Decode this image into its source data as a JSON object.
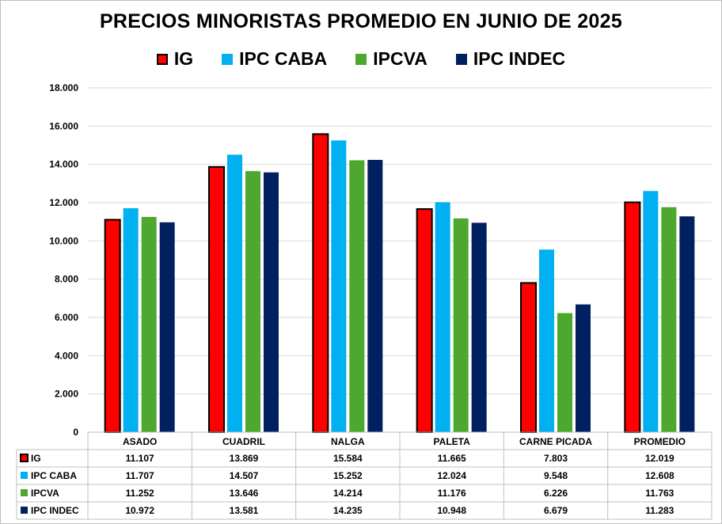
{
  "chart_data": {
    "type": "bar",
    "title": "PRECIOS MINORISTAS PROMEDIO EN JUNIO DE 2025",
    "categories": [
      "ASADO",
      "CUADRIL",
      "NALGA",
      "PALETA",
      "CARNE PICADA",
      "PROMEDIO"
    ],
    "series": [
      {
        "name": "IG",
        "color": "#ff0000",
        "outline": "#000000",
        "values": [
          11107,
          13869,
          15584,
          11665,
          7803,
          12019
        ],
        "labels": [
          "11.107",
          "13.869",
          "15.584",
          "11.665",
          "7.803",
          "12.019"
        ]
      },
      {
        "name": "IPC CABA",
        "color": "#00b0f0",
        "values": [
          11707,
          14507,
          15252,
          12024,
          9548,
          12608
        ],
        "labels": [
          "11.707",
          "14.507",
          "15.252",
          "12.024",
          "9.548",
          "12.608"
        ]
      },
      {
        "name": "IPCVA",
        "color": "#4ea72e",
        "values": [
          11252,
          13646,
          14214,
          11176,
          6226,
          11763
        ],
        "labels": [
          "11.252",
          "13.646",
          "14.214",
          "11.176",
          "6.226",
          "11.763"
        ]
      },
      {
        "name": "IPC INDEC",
        "color": "#002060",
        "values": [
          10972,
          13581,
          14235,
          10948,
          6679,
          11283
        ],
        "labels": [
          "10.972",
          "13.581",
          "14.235",
          "10.948",
          "6.679",
          "11.283"
        ]
      }
    ],
    "ylim": [
      0,
      18000
    ],
    "yticks": [
      0,
      2000,
      4000,
      6000,
      8000,
      10000,
      12000,
      14000,
      16000,
      18000
    ],
    "ytick_labels": [
      "0",
      "2.000",
      "4.000",
      "6.000",
      "8.000",
      "10.000",
      "12.000",
      "14.000",
      "16.000",
      "18.000"
    ],
    "grid": true,
    "legend_position": "top",
    "data_table": true
  }
}
